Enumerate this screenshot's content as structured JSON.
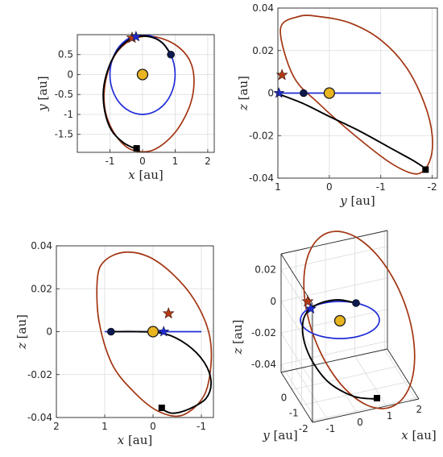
{
  "colors": {
    "earth_orbit": "#1f2dd6",
    "transfer": "#000000",
    "target_orbit": "#a33512",
    "sun_fill": "#e8b420",
    "earth_dot": "#0d1a4d",
    "star_red": "#b23a16",
    "star_blue": "#1f2dd6",
    "grid": "#dcdcdc"
  },
  "chart_data": [
    {
      "type": "line",
      "panel": "top-left",
      "view": "x-y",
      "xlabel": "x [au]",
      "ylabel": "y [au]",
      "xlim": [
        -2,
        2.2
      ],
      "ylim": [
        -1.95,
        1.0
      ],
      "xticks": [
        -1,
        0,
        1,
        2
      ],
      "yticks": [
        0.5,
        0,
        -0.5,
        -1,
        -1.5
      ],
      "grid": true,
      "series": [
        {
          "role": "earth_orbit",
          "x": [
            1.0,
            0.866,
            0.5,
            0.0,
            -0.5,
            -0.866,
            -1.0,
            -0.866,
            -0.5,
            0.0,
            0.5,
            0.866,
            1.0
          ],
          "y": [
            0.0,
            0.5,
            0.866,
            1.0,
            0.866,
            0.5,
            0.0,
            -0.5,
            -0.866,
            -1.0,
            -0.866,
            -0.5,
            0.0
          ]
        },
        {
          "role": "target_orbit",
          "x": [
            1.58,
            1.45,
            1.0,
            0.35,
            -0.25,
            -0.75,
            -1.05,
            -1.18,
            -1.1,
            -0.8,
            -0.35,
            0.3,
            0.95,
            1.42,
            1.58
          ],
          "y": [
            -0.2,
            0.35,
            0.75,
            0.95,
            0.9,
            0.6,
            0.1,
            -0.5,
            -1.05,
            -1.55,
            -1.88,
            -1.9,
            -1.5,
            -0.85,
            -0.2
          ]
        },
        {
          "role": "transfer",
          "x": [
            0.87,
            0.6,
            0.2,
            -0.3,
            -0.75,
            -1.05,
            -1.2,
            -1.15,
            -0.95,
            -0.6,
            -0.25
          ],
          "y": [
            0.5,
            0.8,
            0.95,
            0.92,
            0.62,
            0.15,
            -0.4,
            -0.95,
            -1.4,
            -1.7,
            -1.85
          ]
        }
      ],
      "markers": [
        {
          "symbol": "sun",
          "x": 0.0,
          "y": 0.0
        },
        {
          "symbol": "earth",
          "x": 0.87,
          "y": 0.5
        },
        {
          "symbol": "square",
          "x": -0.18,
          "y": -1.85
        },
        {
          "symbol": "star_red",
          "x": -0.32,
          "y": 0.92
        },
        {
          "symbol": "star_blue",
          "x": -0.2,
          "y": 0.95
        }
      ]
    },
    {
      "type": "line",
      "panel": "top-right",
      "view": "y-z",
      "xlabel": "y [au]",
      "ylabel": "z [au]",
      "xlim": [
        1.0,
        -2.1
      ],
      "ylim": [
        -0.04,
        0.04
      ],
      "xticks": [
        1,
        0,
        -1,
        -2
      ],
      "yticks": [
        0.04,
        0.02,
        0,
        -0.02,
        -0.04
      ],
      "grid": true,
      "series": [
        {
          "role": "earth_orbit",
          "x": [
            1.0,
            -1.0
          ],
          "y": [
            0.0,
            0.0
          ]
        },
        {
          "role": "target_orbit",
          "x": [
            0.95,
            0.6,
            0.2,
            -0.4,
            -1.0,
            -1.5,
            -1.85,
            -2.0,
            -1.95,
            -1.7,
            -1.2,
            -0.5,
            0.2,
            0.7,
            0.95
          ],
          "y": [
            0.03,
            0.036,
            0.036,
            0.033,
            0.025,
            0.012,
            -0.005,
            -0.02,
            -0.032,
            -0.038,
            -0.033,
            -0.02,
            -0.005,
            0.008,
            0.03
          ]
        },
        {
          "role": "transfer",
          "x": [
            0.98,
            0.5,
            0.0,
            -0.6,
            -1.2,
            -1.65,
            -1.9
          ],
          "y": [
            -0.0005,
            -0.005,
            -0.011,
            -0.018,
            -0.026,
            -0.032,
            -0.036
          ]
        }
      ],
      "markers": [
        {
          "symbol": "sun",
          "x": 0.0,
          "y": 0.0
        },
        {
          "symbol": "earth",
          "x": 0.5,
          "y": 0.0
        },
        {
          "symbol": "square",
          "x": -1.87,
          "y": -0.036
        },
        {
          "symbol": "star_red",
          "x": 0.92,
          "y": 0.0085
        },
        {
          "symbol": "star_blue",
          "x": 0.98,
          "y": 0.0
        }
      ]
    },
    {
      "type": "line",
      "panel": "bottom-left",
      "view": "x-z",
      "xlabel": "x [au]",
      "ylabel": "z [au]",
      "xlim": [
        2.0,
        -1.25
      ],
      "ylim": [
        -0.04,
        0.04
      ],
      "xticks": [
        2,
        1,
        0,
        -1
      ],
      "yticks": [
        0.04,
        0.02,
        0,
        -0.02,
        -0.04
      ],
      "grid": true,
      "series": [
        {
          "role": "earth_orbit",
          "x": [
            1.0,
            -1.0
          ],
          "y": [
            0.0,
            0.0
          ]
        },
        {
          "role": "target_orbit",
          "x": [
            1.15,
            1.0,
            0.6,
            0.1,
            -0.4,
            -0.85,
            -1.15,
            -1.2,
            -1.05,
            -0.6,
            -0.1,
            0.4,
            0.85,
            1.12,
            1.15
          ],
          "y": [
            0.025,
            0.033,
            0.037,
            0.035,
            0.027,
            0.015,
            0.0,
            -0.015,
            -0.03,
            -0.039,
            -0.037,
            -0.028,
            -0.015,
            0.005,
            0.025
          ]
        },
        {
          "role": "transfer",
          "x": [
            0.87,
            0.3,
            -0.25,
            -0.7,
            -1.05,
            -1.2,
            -1.1,
            -0.75,
            -0.4,
            -0.18
          ],
          "y": [
            0.0,
            0.0,
            -0.001,
            -0.006,
            -0.014,
            -0.023,
            -0.031,
            -0.036,
            -0.038,
            -0.036
          ]
        }
      ],
      "markers": [
        {
          "symbol": "sun",
          "x": 0.0,
          "y": 0.0
        },
        {
          "symbol": "earth",
          "x": 0.87,
          "y": 0.0
        },
        {
          "symbol": "square",
          "x": -0.18,
          "y": -0.0355
        },
        {
          "symbol": "star_red",
          "x": -0.32,
          "y": 0.0085
        },
        {
          "symbol": "star_blue",
          "x": -0.22,
          "y": 0.0
        }
      ]
    },
    {
      "type": "line",
      "panel": "bottom-right",
      "view": "3d",
      "xlabel": "x [au]",
      "ylabel": "y [au]",
      "zlabel": "z [au]",
      "xticks": [
        -1,
        0,
        1,
        2
      ],
      "yticks": [
        -2,
        -1,
        0
      ],
      "zticks": [
        0.02,
        0,
        -0.02,
        -0.04
      ],
      "grid": true,
      "series": [
        {
          "role": "earth_orbit"
        },
        {
          "role": "target_orbit"
        },
        {
          "role": "transfer"
        }
      ],
      "markers": [
        {
          "symbol": "sun"
        },
        {
          "symbol": "earth"
        },
        {
          "symbol": "square"
        },
        {
          "symbol": "star_red"
        },
        {
          "symbol": "star_blue"
        }
      ]
    }
  ]
}
